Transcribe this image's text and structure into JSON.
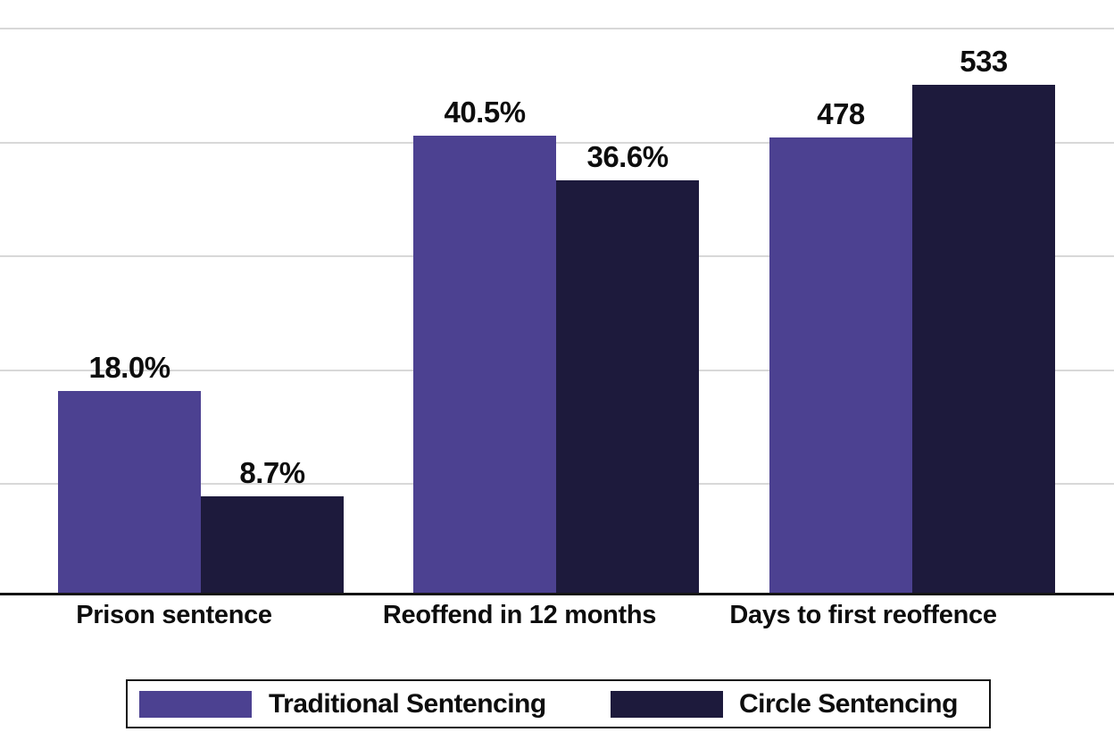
{
  "chart_data": {
    "type": "bar",
    "title": "",
    "xlabel": "",
    "ylabel": "",
    "grid": true,
    "legend_position": "bottom",
    "categories": [
      "Prison sentence",
      "Reoffend in 12 months",
      "Days to first reoffence"
    ],
    "series": [
      {
        "name": "Traditional Sentencing",
        "color": "#4c4191",
        "values": [
          18.0,
          40.5,
          478
        ],
        "value_labels": [
          "18.0%",
          "40.5%",
          "478"
        ]
      },
      {
        "name": "Circle Sentencing",
        "color": "#1d1a3c",
        "values": [
          8.7,
          36.6,
          533
        ],
        "value_labels": [
          "8.7%",
          "36.6%",
          "533"
        ]
      }
    ],
    "value_units": [
      "percent",
      "percent",
      "days"
    ],
    "gridlines_percent_step": 10
  },
  "legend": {
    "items": [
      {
        "label": "Traditional Sentencing",
        "color": "#4c4191"
      },
      {
        "label": "Circle Sentencing",
        "color": "#1d1a3c"
      }
    ]
  },
  "colors": {
    "traditional": "#4c4191",
    "circle": "#1d1a3c",
    "gridline": "#d8d8d8",
    "axis": "#141414",
    "text": "#0d0d0d",
    "background": "#ffffff"
  }
}
